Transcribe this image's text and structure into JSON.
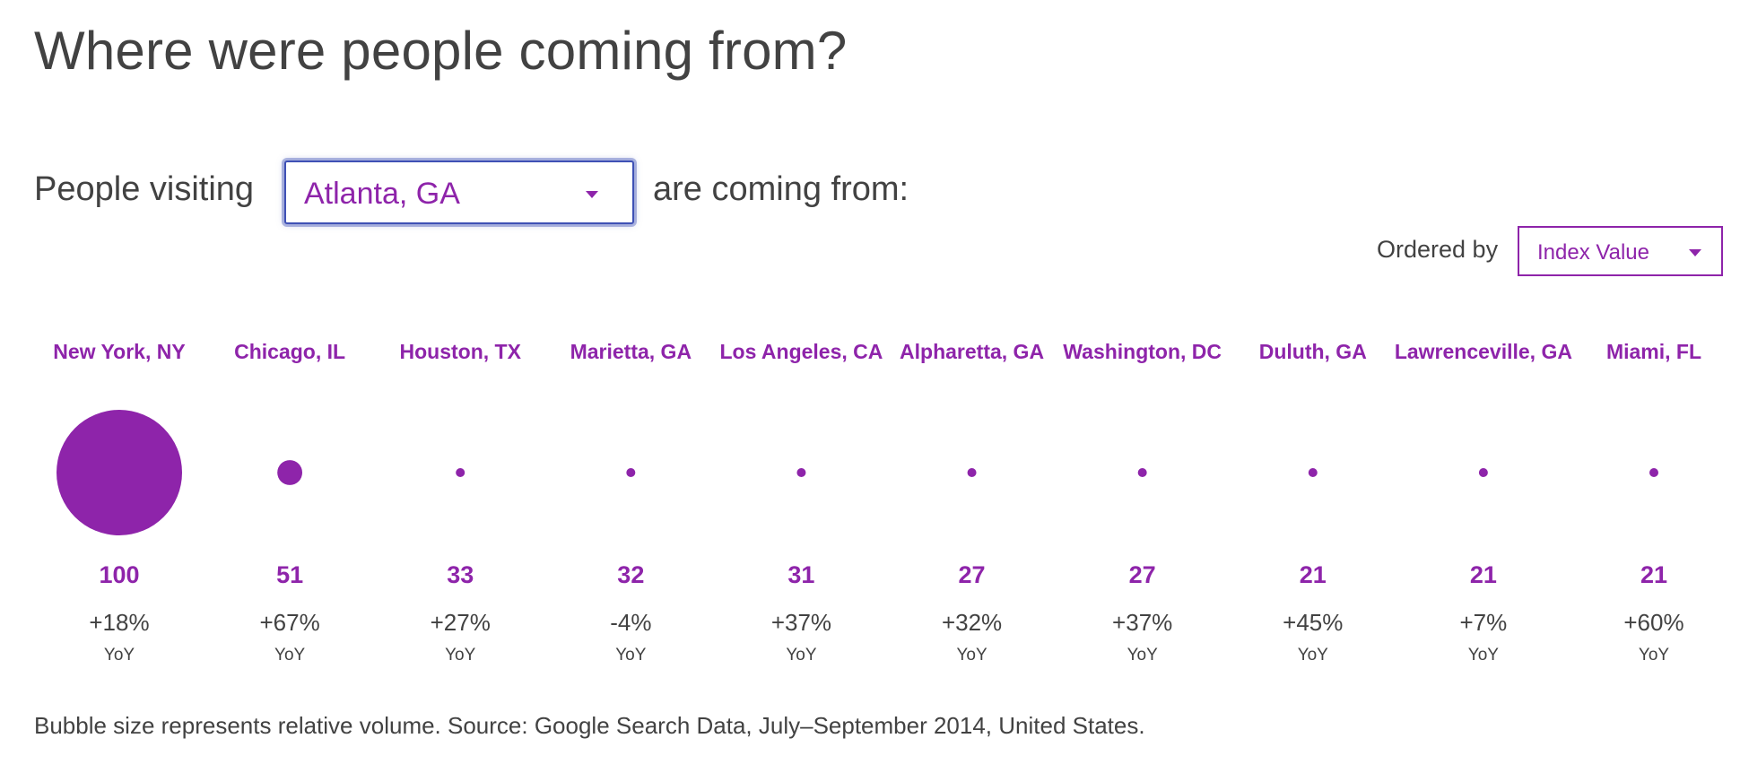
{
  "title": "Where were people coming from?",
  "controls": {
    "label_before": "People visiting",
    "selected_city": "Atlanta, GA",
    "label_after": "are coming from:",
    "order_label": "Ordered by",
    "order_value": "Index Value"
  },
  "footnote": "Bubble size represents relative volume. Source: Google Search Data, July–September 2014, United States.",
  "colors": {
    "accent": "#8e24aa",
    "text": "#424242",
    "focus": "#3f51b5"
  },
  "chart_data": {
    "type": "scatter",
    "encoding": "bubble",
    "categories": [
      "New York, NY",
      "Chicago, IL",
      "Houston, TX",
      "Marietta, GA",
      "Los Angeles, CA",
      "Alpharetta, GA",
      "Washington, DC",
      "Duluth, GA",
      "Lawrenceville, GA",
      "Miami, FL"
    ],
    "values": [
      100,
      51,
      33,
      32,
      31,
      27,
      27,
      21,
      21,
      21
    ],
    "yoy": [
      "+18%",
      "+67%",
      "+27%",
      "-4%",
      "+37%",
      "+32%",
      "+37%",
      "+45%",
      "+7%",
      "+60%"
    ],
    "yoy_label": "YoY"
  }
}
